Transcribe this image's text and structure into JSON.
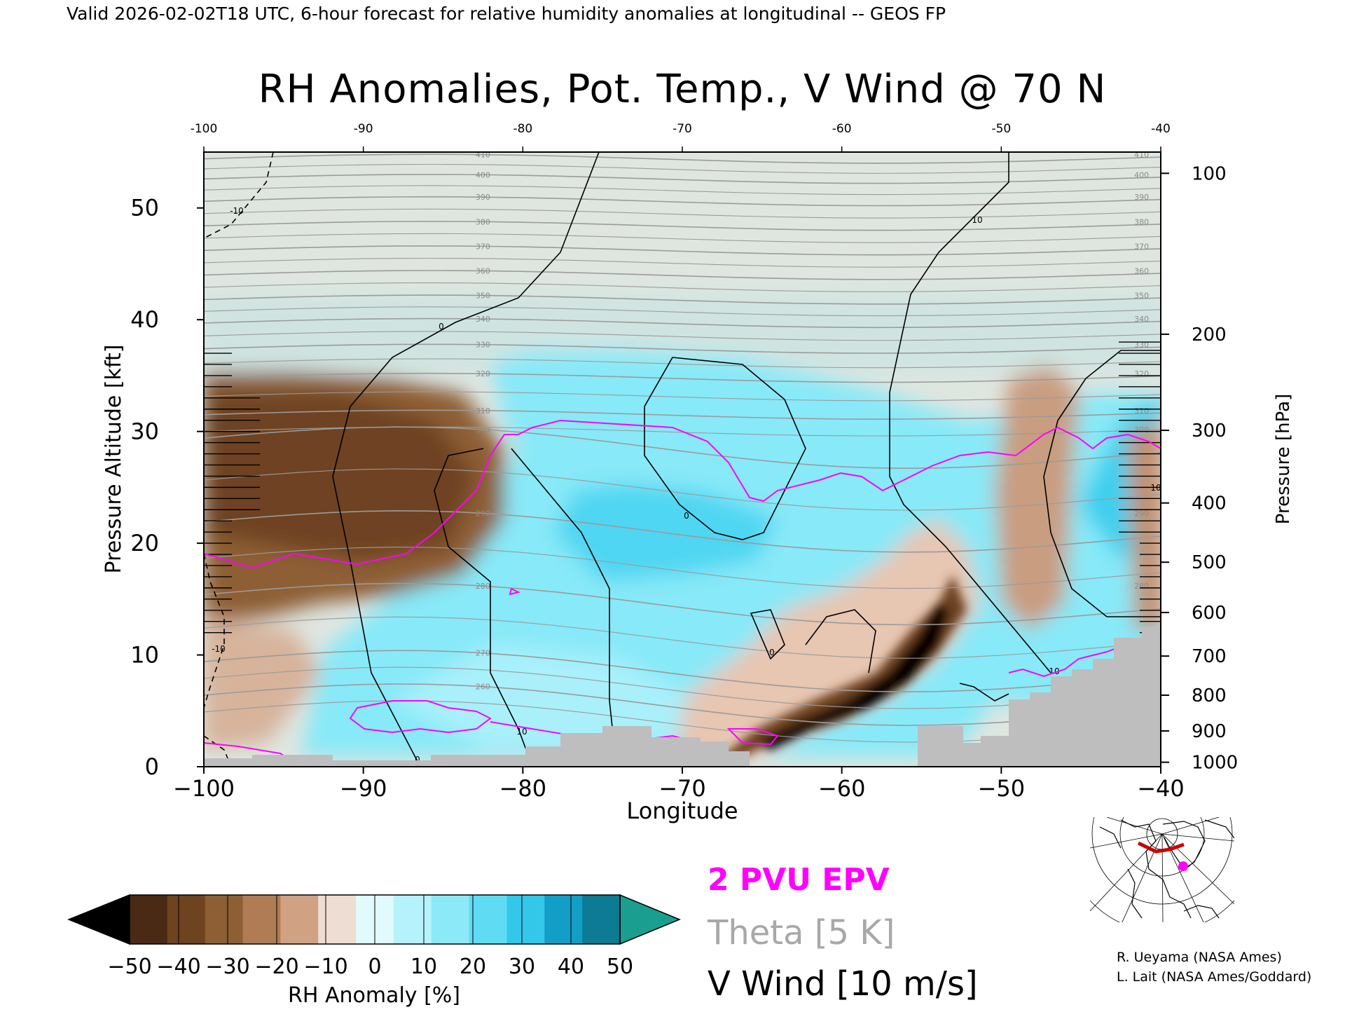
{
  "header": {
    "valid_line": "Valid 2026-02-02T18 UTC, 6-hour forecast for relative humidity anomalies at longitudinal -- GEOS FP"
  },
  "chart_data": {
    "type": "heatmap",
    "title": "RH Anomalies, Pot. Temp., V Wind @ 70 N",
    "xlabel": "Longitude",
    "ylabel_left": "Pressure Altitude [kft]",
    "ylabel_right": "Pressure [hPa]",
    "xlim": [
      -100,
      -40
    ],
    "ylim_kft": [
      0,
      55
    ],
    "x_ticks": [
      -100,
      -90,
      -80,
      -70,
      -60,
      -50,
      -40
    ],
    "x_tick_labels": [
      "−100",
      "−90",
      "−80",
      "−70",
      "−60",
      "−50",
      "−40"
    ],
    "top_tick_labels": [
      "-100",
      "-90",
      "-80",
      "-70",
      "-60",
      "-50",
      "-40"
    ],
    "y_ticks_kft": [
      0,
      10,
      20,
      30,
      40,
      50
    ],
    "pressure_ticks": [
      {
        "hpa": 100,
        "kft": 53.1,
        "label": "100"
      },
      {
        "hpa": 200,
        "kft": 38.7,
        "label": "200"
      },
      {
        "hpa": 300,
        "kft": 30.1,
        "label": "300"
      },
      {
        "hpa": 400,
        "kft": 23.6,
        "label": "400"
      },
      {
        "hpa": 500,
        "kft": 18.3,
        "label": "500"
      },
      {
        "hpa": 600,
        "kft": 13.8,
        "label": "600"
      },
      {
        "hpa": 700,
        "kft": 9.9,
        "label": "700"
      },
      {
        "hpa": 800,
        "kft": 6.4,
        "label": "800"
      },
      {
        "hpa": 900,
        "kft": 3.2,
        "label": "900"
      },
      {
        "hpa": 1000,
        "kft": 0.4,
        "label": "1000"
      }
    ],
    "colorbar": {
      "label": "RH Anomaly [%]",
      "tick_labels": [
        "−50",
        "−40",
        "−30",
        "−20",
        "−10",
        "0",
        "10",
        "20",
        "30",
        "40",
        "50"
      ],
      "colors": [
        "#000000",
        "#4a2a14",
        "#6e4320",
        "#8e5e34",
        "#b07c55",
        "#cfa283",
        "#eeddd2",
        "#e0fafd",
        "#b6f2fb",
        "#8ceaf8",
        "#5fdcf3",
        "#33c8ea",
        "#139ec7",
        "#0c7b93",
        "#1a9e90"
      ]
    },
    "contour_levels_theta_K": [
      260,
      270,
      280,
      290,
      300,
      310,
      320,
      330,
      340,
      350,
      360,
      370,
      380,
      390,
      400,
      410
    ],
    "v_wind_contour_labels": [
      "0",
      "10",
      "-10"
    ],
    "regions": [
      {
        "name": "dry-upper-west",
        "lon": [
          -100,
          -83
        ],
        "kft": [
          17,
          36
        ],
        "anomaly": -35
      },
      {
        "name": "moist-midlevel",
        "lon": [
          -86,
          -46
        ],
        "kft": [
          5,
          35
        ],
        "anomaly": 25
      },
      {
        "name": "very-dry-tongue",
        "lon": [
          -66,
          -52
        ],
        "kft": [
          2,
          15
        ],
        "anomaly": -50
      },
      {
        "name": "stratosphere",
        "lon": [
          -100,
          -40
        ],
        "kft": [
          40,
          55
        ],
        "anomaly": 0
      }
    ]
  },
  "legend": {
    "epv_label": "2 PVU EPV",
    "theta_label": "Theta [5 K]",
    "vwind_label": "V Wind [10 m/s]",
    "epv_color": "#ff00ff",
    "theta_color": "#a8a8a8"
  },
  "credits": {
    "line1": "R. Ueyama (NASA Ames)",
    "line2": "L. Lait (NASA Ames/Goddard)"
  },
  "inset_map": {
    "marker_color": "#ff00ff",
    "section_color": "#cc0000"
  }
}
